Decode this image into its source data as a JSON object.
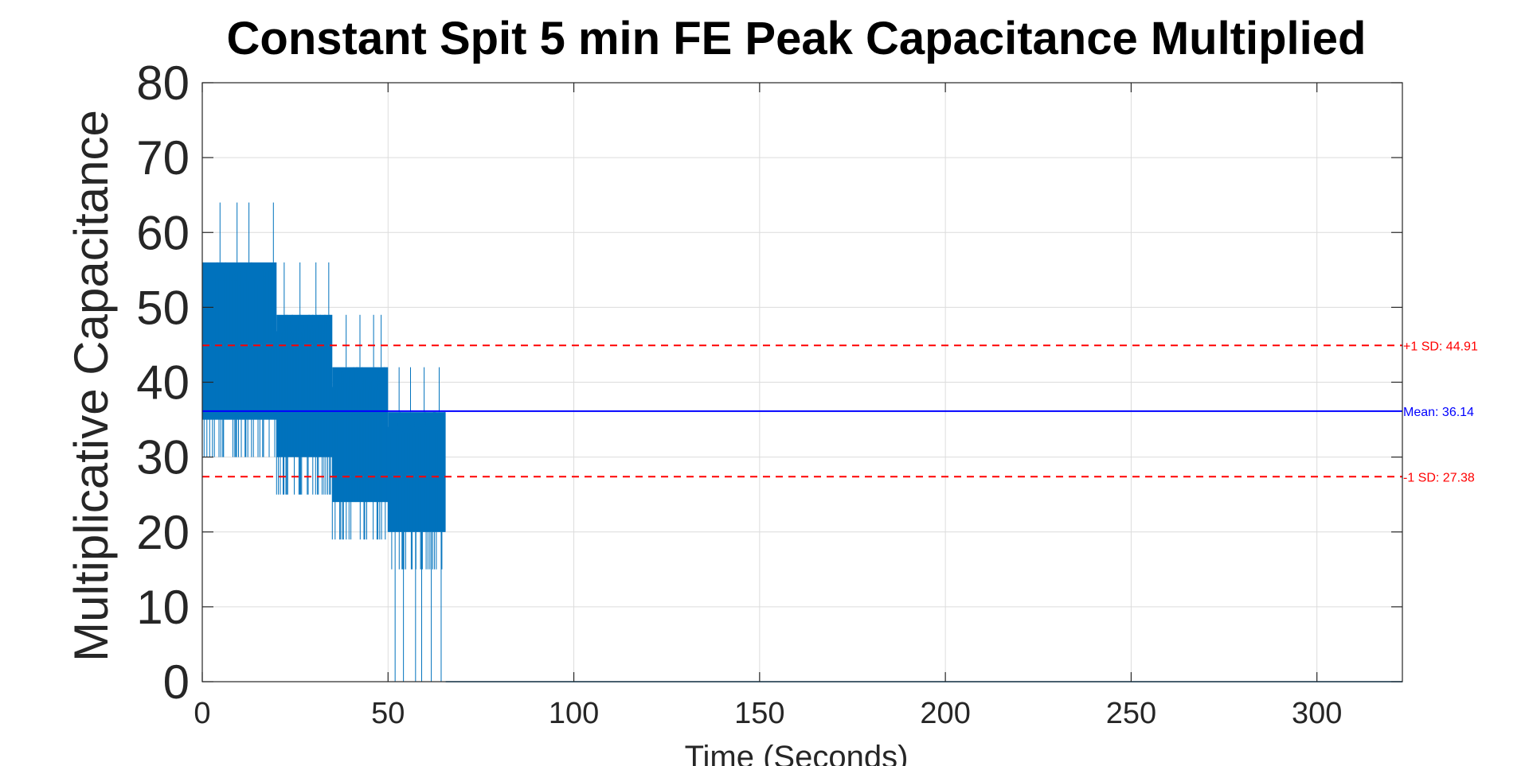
{
  "chart_data": {
    "type": "line",
    "title": "Constant Spit 5 min FE Peak Capacitance Multiplied",
    "xlabel": "Time (Seconds)",
    "ylabel": "Multiplicative Capacitance",
    "xlim": [
      0,
      323
    ],
    "ylim": [
      0,
      80
    ],
    "x_ticks": [
      0,
      50,
      100,
      150,
      200,
      250,
      300
    ],
    "y_ticks": [
      0,
      10,
      20,
      30,
      40,
      50,
      60,
      70,
      80
    ],
    "grid": true,
    "series": [
      {
        "color": "#0072BD",
        "style": "noisy-step",
        "segments": [
          {
            "x_start": 0,
            "x_end": 20,
            "low": 35,
            "high": 56,
            "spikes": [
              64
            ]
          },
          {
            "x_start": 20,
            "x_end": 35,
            "low": 30,
            "high": 49,
            "spikes": [
              56,
              49
            ]
          },
          {
            "x_start": 35,
            "x_end": 50,
            "low": 24,
            "high": 42,
            "spikes": [
              49
            ]
          },
          {
            "x_start": 50,
            "x_end": 65.5,
            "low": 20,
            "high": 36,
            "spikes": [
              42,
              0
            ]
          }
        ],
        "after": {
          "x_start": 65.5,
          "x_end": 323,
          "value": 0
        }
      }
    ],
    "reference_lines": [
      {
        "label": "+1 SD: 44.91",
        "value": 44.91,
        "color": "#FF0000",
        "style": "dashed"
      },
      {
        "label": "Mean: 36.14",
        "value": 36.14,
        "color": "#0000FF",
        "style": "solid"
      },
      {
        "label": "-1 SD: 27.38",
        "value": 27.38,
        "color": "#FF0000",
        "style": "dashed"
      }
    ]
  }
}
